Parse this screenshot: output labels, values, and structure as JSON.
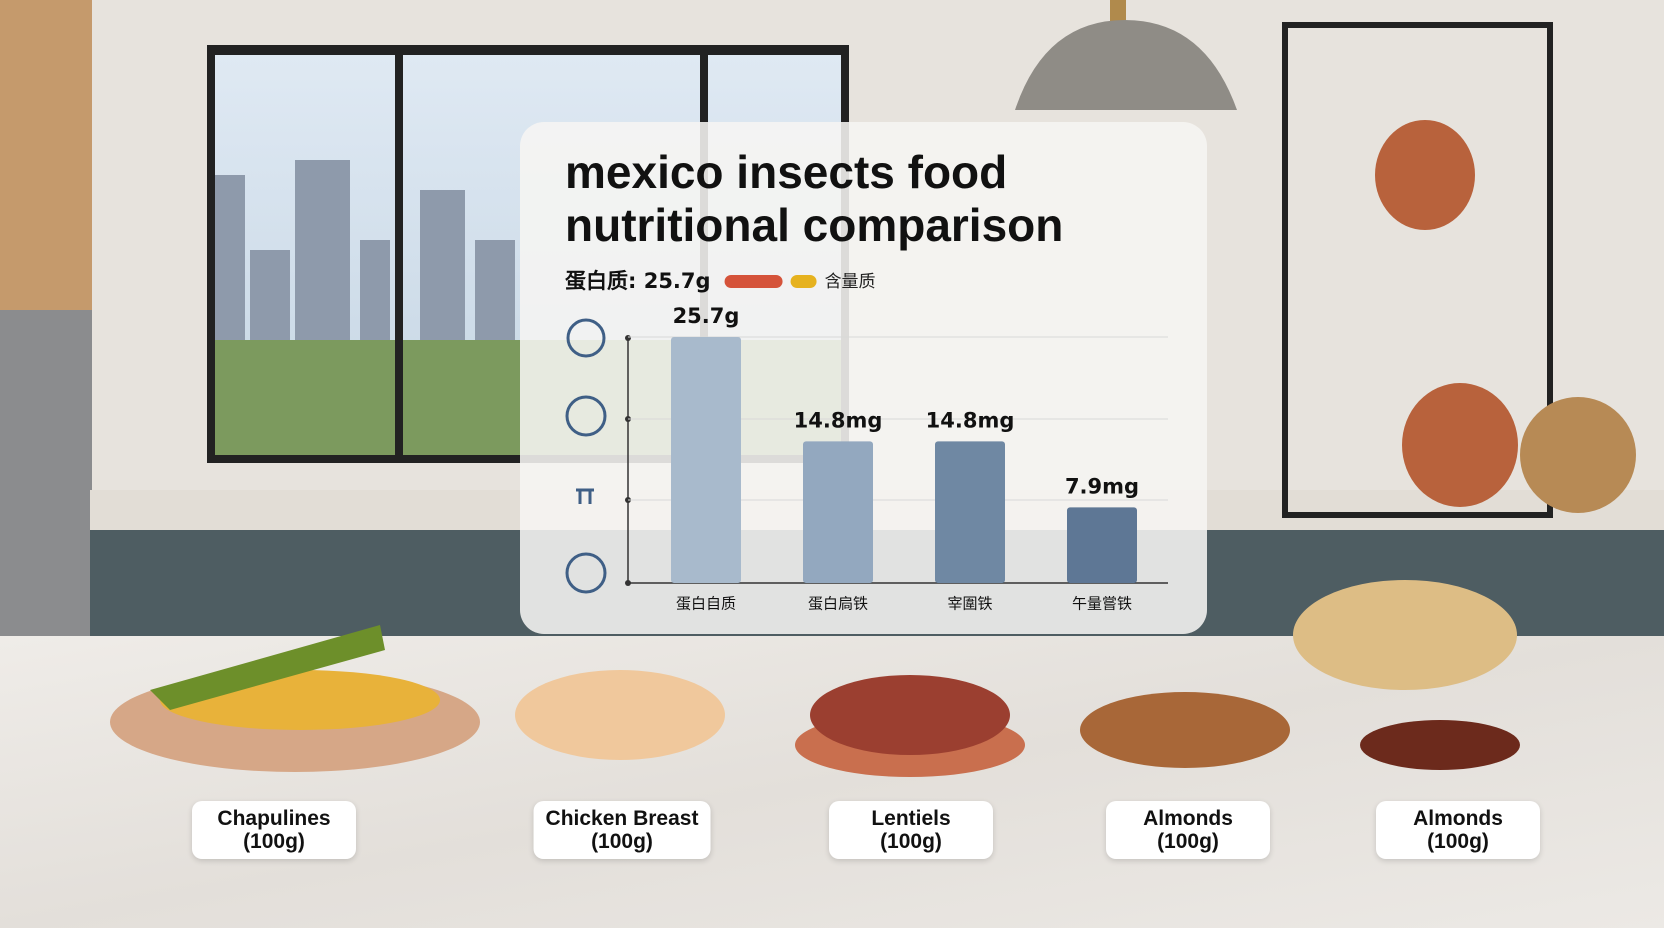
{
  "chart_data": {
    "type": "bar",
    "title_lines": [
      "mexico insects food",
      "nutritional comparison"
    ],
    "legend_text": "蛋白质: 25.7g",
    "legend_items": [
      {
        "color": "#d5533a"
      },
      {
        "color": "#e6b21f",
        "name": "含量质"
      }
    ],
    "categories": [
      "蛋白自质",
      "蛋白扃铁",
      "宰圍铁",
      "午量嘗铁"
    ],
    "values": [
      25.7,
      14.8,
      14.8,
      7.9
    ],
    "value_labels": [
      "25.7g",
      "14.8mg",
      "14.8mg",
      "7.9mg"
    ],
    "colors": [
      "#a8bacc",
      "#93a8bf",
      "#6f88a3",
      "#5e7795"
    ],
    "grid": true
  },
  "food_labels": [
    {
      "name": "Chapulines",
      "portion": "(100g)"
    },
    {
      "name": "Chicken Breast",
      "portion": "(100g)"
    },
    {
      "name": "Lentiels",
      "portion": "(100g)"
    },
    {
      "name": "Almonds",
      "portion": "(100g)"
    },
    {
      "name": "Almonds",
      "portion": "(100g)"
    }
  ]
}
